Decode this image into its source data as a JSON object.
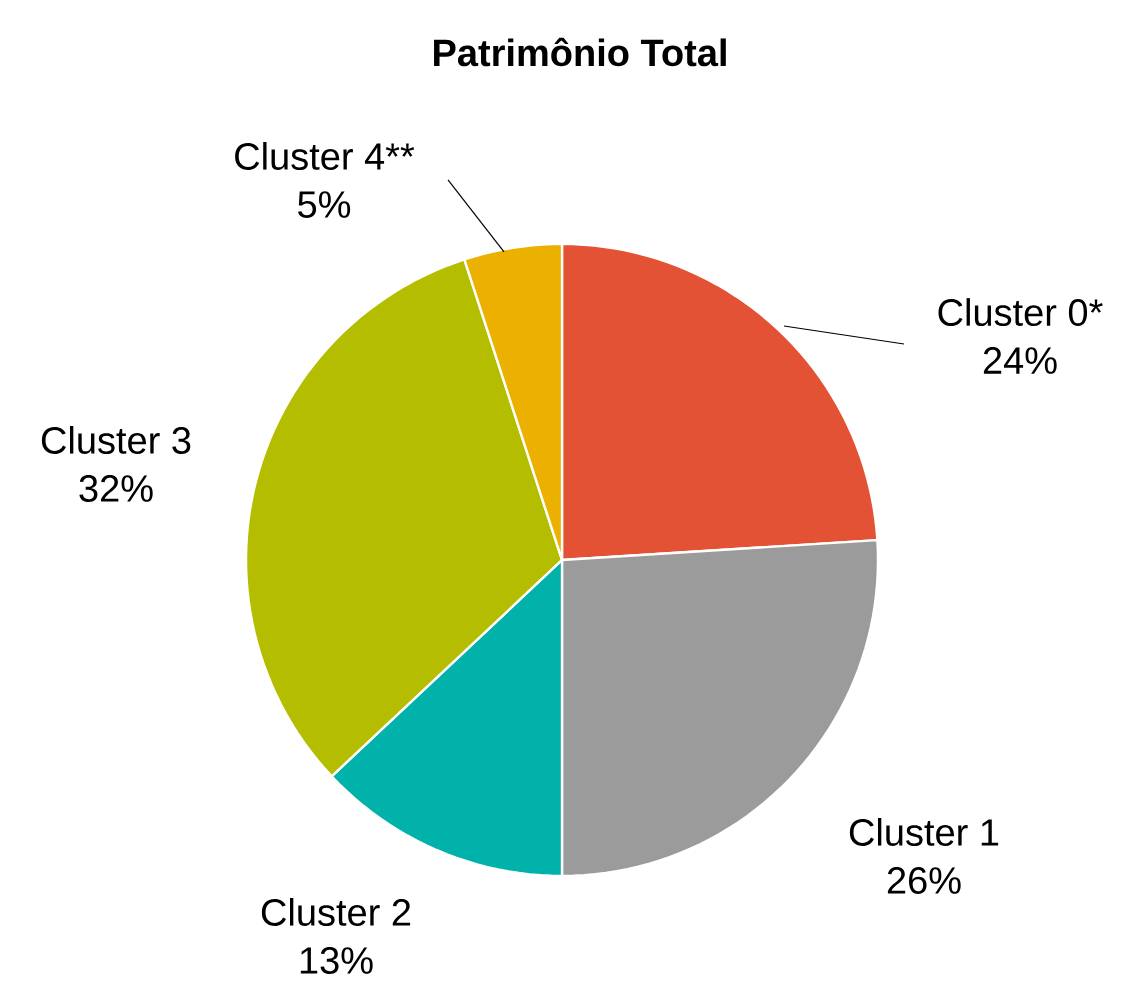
{
  "chart_data": {
    "type": "pie",
    "title": "Patrimônio Total",
    "categories": [
      "Cluster 0*",
      "Cluster 1",
      "Cluster 2",
      "Cluster 3",
      "Cluster 4**"
    ],
    "values": [
      24,
      26,
      13,
      32,
      5
    ],
    "value_labels": [
      "24%",
      "26%",
      "13%",
      "32%",
      "5%"
    ],
    "colors": [
      "#e35235",
      "#9b9b9b",
      "#00b2a9",
      "#b5bd00",
      "#ecb100"
    ]
  }
}
